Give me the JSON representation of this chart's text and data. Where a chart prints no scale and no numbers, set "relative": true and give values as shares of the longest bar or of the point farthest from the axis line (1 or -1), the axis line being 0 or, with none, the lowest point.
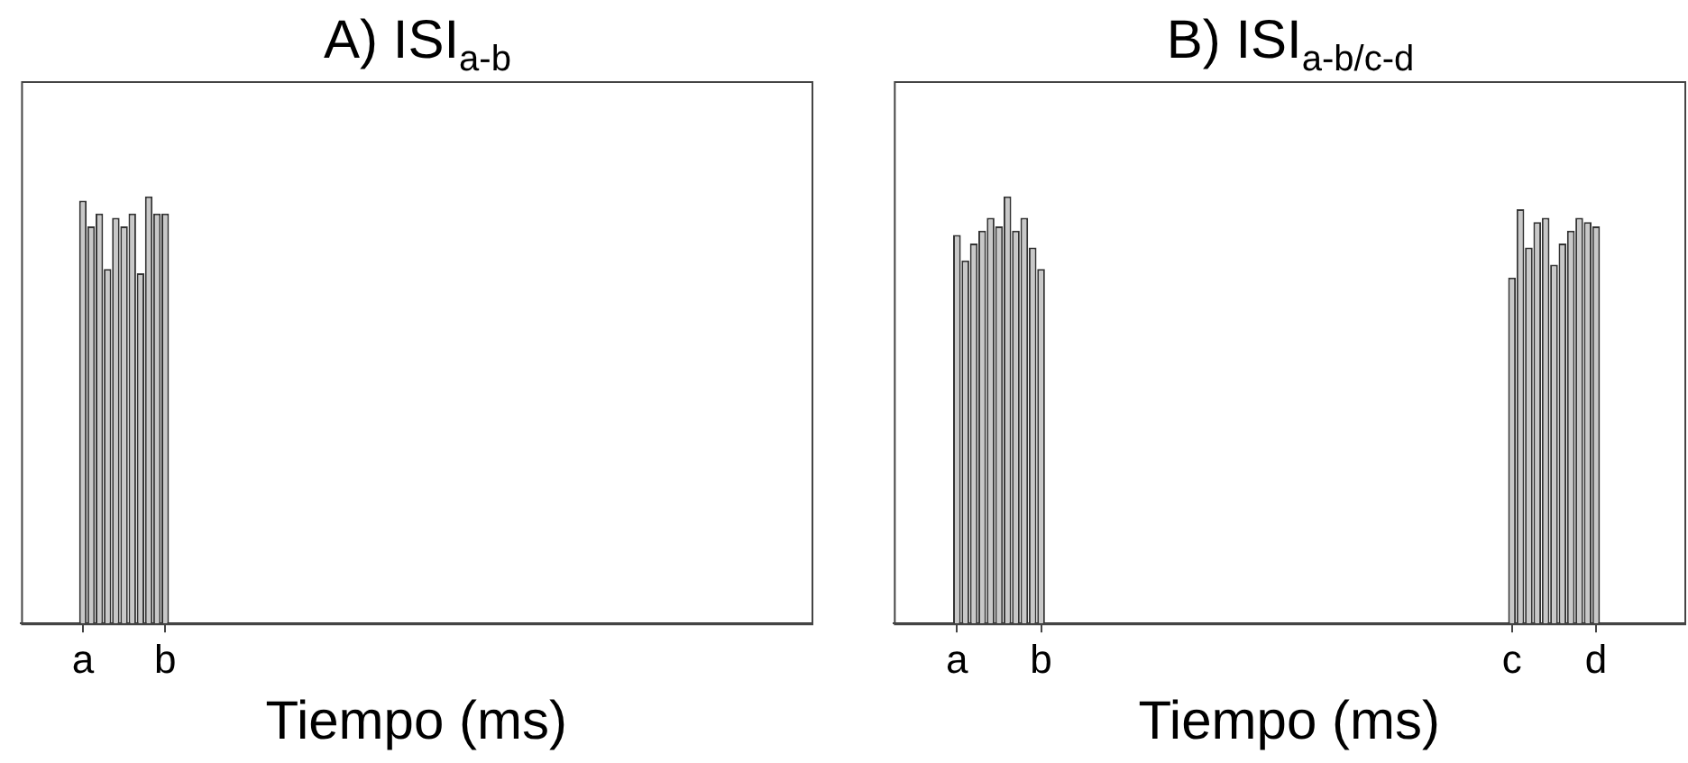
{
  "chart_data": [
    {
      "type": "bar",
      "title": "A) ISI$_{a-b}$",
      "xlabel": "Tiempo (ms)",
      "relative": true,
      "color": "#c8c8c8",
      "grid": false,
      "legend": false,
      "tick_labels": "x",
      "categories": [
        null,
        null,
        null,
        null,
        null,
        null,
        null,
        "a",
        null,
        null,
        null,
        null,
        null,
        null,
        null,
        null,
        null,
        "b",
        null,
        null,
        null,
        null,
        null,
        null,
        null,
        null,
        null,
        null,
        null,
        null,
        null,
        null,
        null,
        null,
        null,
        null,
        null,
        null,
        null,
        null,
        null,
        null,
        null,
        null,
        null,
        null,
        null,
        null,
        null,
        null,
        null,
        null,
        null,
        null,
        null,
        null,
        null,
        null,
        null,
        null,
        null,
        null,
        null,
        null,
        null,
        null,
        null,
        null,
        null,
        null,
        null,
        null,
        null,
        null,
        null,
        null,
        null,
        null,
        null,
        null,
        null,
        null,
        null,
        null,
        null,
        null,
        null,
        null,
        null,
        null,
        null,
        null,
        null,
        null,
        null,
        null
      ],
      "values": [
        null,
        null,
        null,
        null,
        null,
        null,
        null,
        0.99,
        0.93,
        0.96,
        0.83,
        0.95,
        0.93,
        0.96,
        0.82,
        1,
        0.96,
        0.96,
        null,
        null,
        null,
        null,
        null,
        null,
        null,
        null,
        null,
        null,
        null,
        null,
        null,
        null,
        null,
        null,
        null,
        null,
        null,
        null,
        null,
        null,
        null,
        null,
        null,
        null,
        null,
        null,
        null,
        null,
        null,
        null,
        null,
        null,
        null,
        null,
        null,
        null,
        null,
        null,
        null,
        null,
        null,
        null,
        null,
        null,
        null,
        null,
        null,
        null,
        null,
        null,
        null,
        null,
        null,
        null,
        null,
        null,
        null,
        null,
        null,
        null,
        null,
        null,
        null,
        null,
        null,
        null,
        null,
        null,
        null,
        null,
        null,
        null,
        null,
        null,
        null,
        null
      ]
    },
    {
      "type": "bar",
      "title": "B) ISI$_{a-b/c-d}$",
      "xlabel": "Tiempo (ms)",
      "relative": true,
      "color": "#c8c8c8",
      "grid": false,
      "legend": false,
      "tick_labels": "x",
      "categories": [
        null,
        null,
        null,
        null,
        null,
        null,
        null,
        "a",
        null,
        null,
        null,
        null,
        null,
        null,
        null,
        null,
        null,
        "b",
        null,
        null,
        null,
        null,
        null,
        null,
        null,
        null,
        null,
        null,
        null,
        null,
        null,
        null,
        null,
        null,
        null,
        null,
        null,
        null,
        null,
        null,
        null,
        null,
        null,
        null,
        null,
        null,
        null,
        null,
        null,
        null,
        null,
        null,
        null,
        null,
        null,
        null,
        null,
        null,
        null,
        null,
        null,
        null,
        null,
        null,
        null,
        null,
        null,
        null,
        null,
        null,
        null,
        null,
        null,
        "c",
        null,
        null,
        null,
        null,
        null,
        null,
        null,
        null,
        null,
        "d",
        null,
        null,
        null,
        null,
        null,
        null,
        null,
        null,
        null,
        null
      ],
      "values": [
        null,
        null,
        null,
        null,
        null,
        null,
        null,
        0.91,
        0.85,
        0.89,
        0.92,
        0.95,
        0.93,
        1,
        0.92,
        0.95,
        0.88,
        0.83,
        null,
        null,
        null,
        null,
        null,
        null,
        null,
        null,
        null,
        null,
        null,
        null,
        null,
        null,
        null,
        null,
        null,
        null,
        null,
        null,
        null,
        null,
        null,
        null,
        null,
        null,
        null,
        null,
        null,
        null,
        null,
        null,
        null,
        null,
        null,
        null,
        null,
        null,
        null,
        null,
        null,
        null,
        null,
        null,
        null,
        null,
        null,
        null,
        null,
        null,
        null,
        null,
        null,
        null,
        null,
        0.81,
        0.97,
        0.88,
        0.94,
        0.95,
        0.84,
        0.89,
        0.92,
        0.95,
        0.94,
        0.93,
        null,
        null,
        null,
        null,
        null,
        null,
        null,
        null,
        null,
        null
      ]
    }
  ]
}
